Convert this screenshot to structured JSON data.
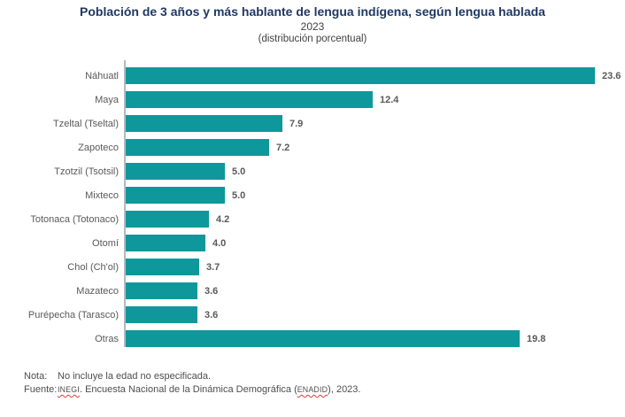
{
  "chart_data": {
    "type": "bar",
    "orientation": "horizontal",
    "title": "Población de 3 años y más hablante de lengua indígena, según lengua hablada",
    "subtitle": "2023",
    "subtitle2": "(distribución porcentual)",
    "categories": [
      "Náhuatl",
      "Maya",
      "Tzeltal (Tseltal)",
      "Zapoteco",
      "Tzotzil (Tsotsil)",
      "Mixteco",
      "Totonaca (Totonaco)",
      "Otomí",
      "Chol (Ch'ol)",
      "Mazateco",
      "Purépecha (Tarasco)",
      "Otras"
    ],
    "values": [
      23.6,
      12.4,
      7.9,
      7.2,
      5.0,
      5.0,
      4.2,
      4.0,
      3.7,
      3.6,
      3.6,
      19.8
    ],
    "value_labels": [
      "23.6",
      "12.4",
      "7.9",
      "7.2",
      "5.0",
      "5.0",
      "4.2",
      "4.0",
      "3.7",
      "3.6",
      "3.6",
      "19.8"
    ],
    "xlim": [
      0,
      25
    ],
    "grid": "off",
    "legend": "none",
    "xlabel": "",
    "ylabel": ""
  },
  "notes": {
    "nota_label": "Nota:",
    "nota_text": "No incluye la edad no especificada.",
    "fuente_label": "Fuente:",
    "fuente_inegi": "INEGI",
    "fuente_mid": ". Encuesta Nacional de la Dinámica Demográfica (",
    "fuente_enadid": "ENADID",
    "fuente_end": "), 2023."
  },
  "colors": {
    "bar": "#0E989B",
    "title": "#1F3864",
    "axis": "#B3B9BF",
    "label_text": "#595959",
    "footer_text": "#4D4D4D",
    "spellcheck": "#E03C31"
  }
}
